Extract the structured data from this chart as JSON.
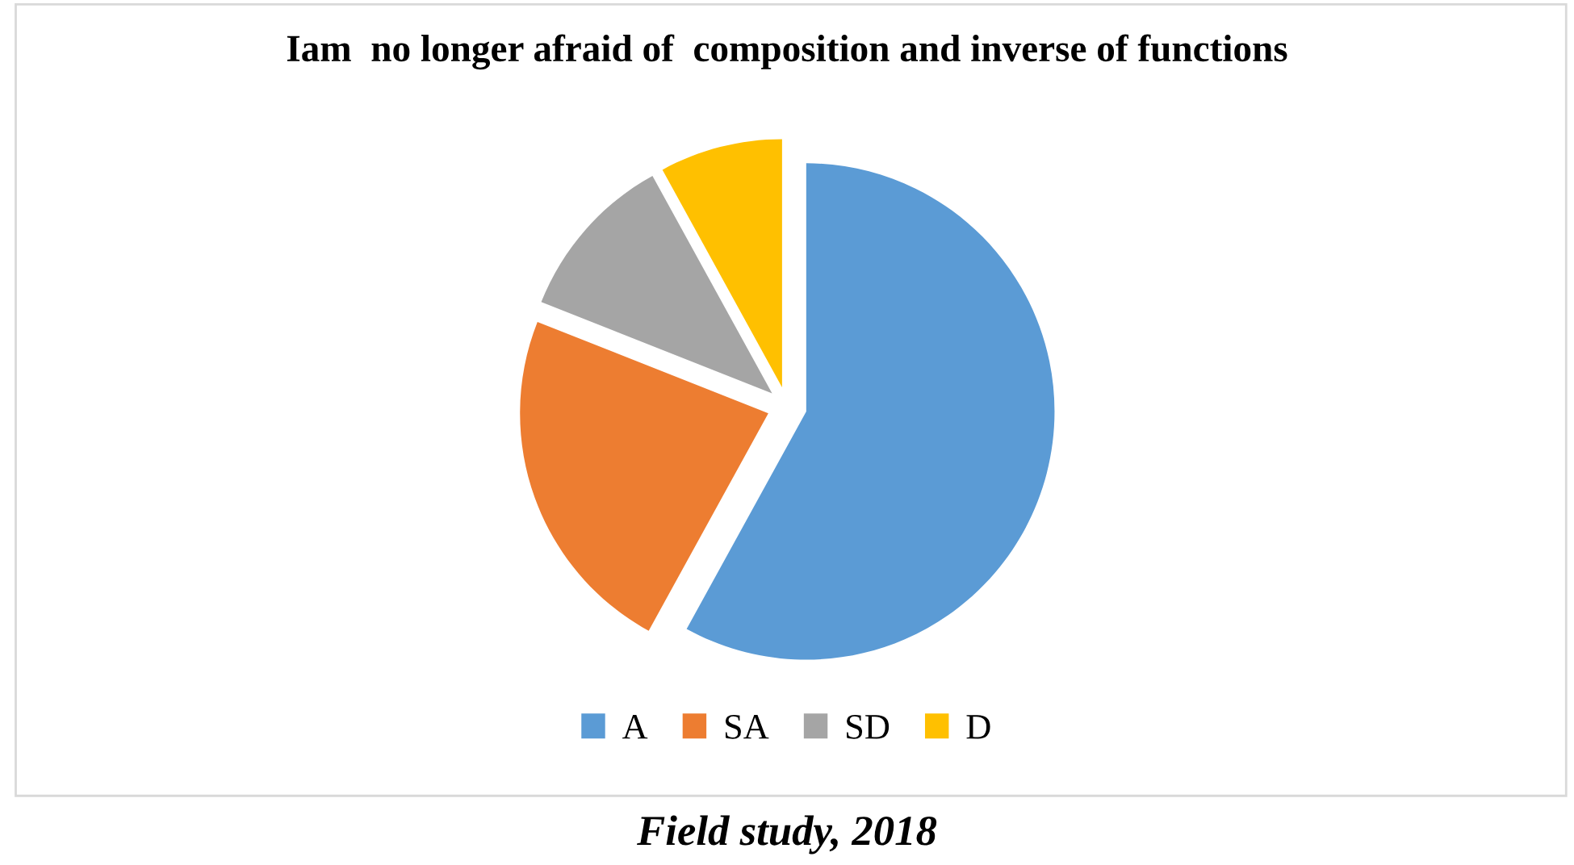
{
  "chart_data": {
    "type": "pie",
    "title": "Iam  no longer afraid of  composition and inverse of functions",
    "categories": [
      "A",
      "SA",
      "SD",
      "D"
    ],
    "values": [
      58,
      23,
      11,
      8
    ],
    "colors": [
      "#5b9bd5",
      "#ed7d31",
      "#a5a5a5",
      "#ffc000"
    ],
    "legend": "bottom",
    "annotations": [
      "Field study, 2018"
    ]
  }
}
